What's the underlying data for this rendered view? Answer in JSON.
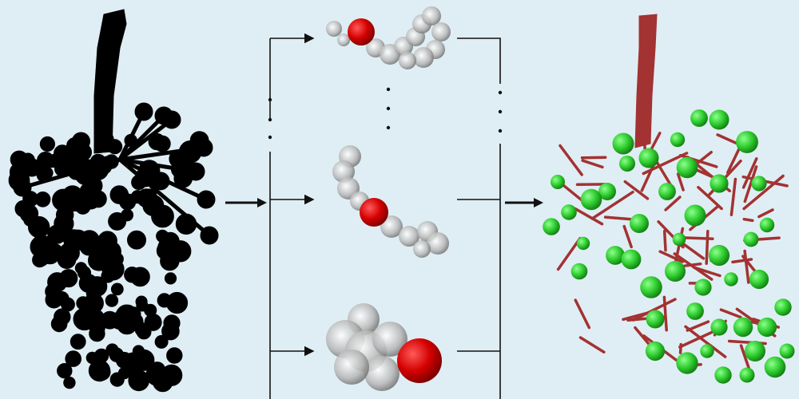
{
  "colors": {
    "background": "#dfeef4",
    "raw_cloud": "#000000",
    "segment_points": "#8a8a8a",
    "highlight_sphere": "#d40000",
    "skeleton": "#a33232",
    "berry_sphere": "#2ecc2e",
    "flow_line": "#111111"
  },
  "stages": [
    {
      "id": "input",
      "visual": "point-cloud-silhouette"
    },
    {
      "id": "segments",
      "visual": "berry-segments-with-fitted-sphere"
    },
    {
      "id": "output",
      "visual": "skeleton-with-fitted-berry-spheres"
    }
  ],
  "icons": [
    "arrow-right-icon",
    "ellipsis-vertical-icon"
  ]
}
